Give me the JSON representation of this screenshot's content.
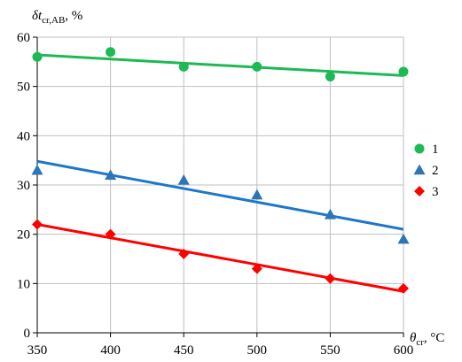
{
  "chart_data": {
    "type": "scatter",
    "ylabel_main": "δt",
    "ylabel_sub": "cr,AB",
    "ylabel_unit": ", %",
    "xlabel_main": "θ",
    "xlabel_sub": "cr",
    "xlabel_unit": ", °C",
    "xlim": [
      350,
      600
    ],
    "ylim": [
      0,
      60
    ],
    "xticks": [
      350,
      400,
      450,
      500,
      550,
      600
    ],
    "yticks": [
      0,
      10,
      20,
      30,
      40,
      50,
      60
    ],
    "grid": true,
    "legend_position": "right",
    "series": [
      {
        "name": "1",
        "marker": "circle",
        "color": "#1db954",
        "line_color": "#1db954",
        "points": [
          [
            350,
            56
          ],
          [
            400,
            57
          ],
          [
            450,
            54
          ],
          [
            500,
            54
          ],
          [
            550,
            52
          ],
          [
            600,
            53
          ]
        ],
        "trend": [
          [
            350,
            56.4
          ],
          [
            600,
            52.2
          ]
        ]
      },
      {
        "name": "2",
        "marker": "triangle",
        "color": "#2e75b6",
        "line_color": "#1f77c8",
        "points": [
          [
            350,
            33
          ],
          [
            400,
            32
          ],
          [
            450,
            31
          ],
          [
            500,
            28
          ],
          [
            550,
            24
          ],
          [
            600,
            19
          ]
        ],
        "trend": [
          [
            350,
            34.8
          ],
          [
            600,
            21.0
          ]
        ]
      },
      {
        "name": "3",
        "marker": "diamond",
        "color": "#ff0000",
        "line_color": "#ff0000",
        "points": [
          [
            350,
            22
          ],
          [
            400,
            20
          ],
          [
            450,
            16
          ],
          [
            500,
            13
          ],
          [
            550,
            11
          ],
          [
            600,
            9
          ]
        ],
        "trend": [
          [
            350,
            22.0
          ],
          [
            600,
            8.4
          ]
        ]
      }
    ]
  }
}
